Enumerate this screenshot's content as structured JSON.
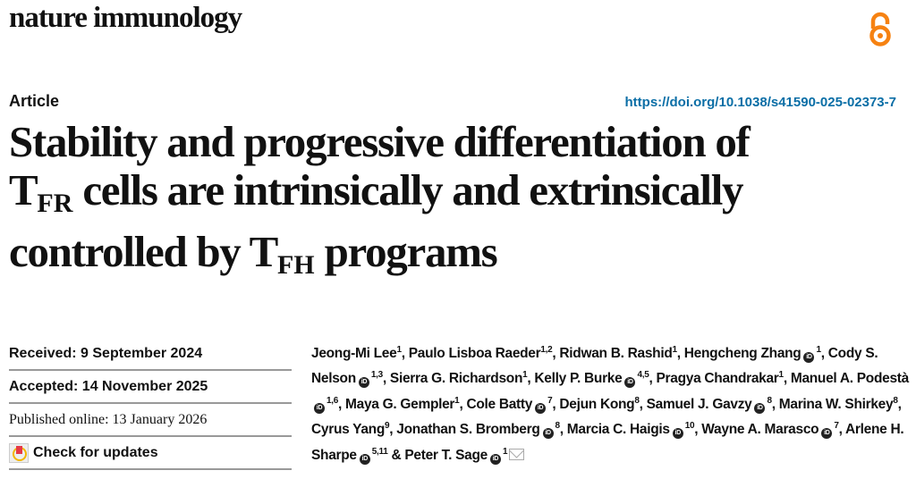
{
  "journal": "nature immunology",
  "article_type": "Article",
  "doi": "https://doi.org/10.1038/s41590-025-02373-7",
  "title": {
    "line1": "Stability and progressive differentiation of",
    "t1": "T",
    "s1": "FR",
    "line2": " cells are intrinsically and extrinsically",
    "line3a": "controlled by T",
    "s2": "FH",
    "line3b": " programs"
  },
  "dates": {
    "received": "Received: 9 September 2024",
    "accepted": "Accepted: 14 November 2025",
    "published": "Published online: 13 January 2026",
    "check_updates": "Check for updates"
  },
  "authors": [
    {
      "name": "Jeong-Mi Lee",
      "aff": "1",
      "orcid": false,
      "sep": ", "
    },
    {
      "name": "Paulo Lisboa Raeder",
      "aff": "1,2",
      "orcid": false,
      "sep": ", "
    },
    {
      "name": "Ridwan B. Rashid",
      "aff": "1",
      "orcid": false,
      "sep": ", "
    },
    {
      "name": "Hengcheng Zhang",
      "aff": "1",
      "orcid": true,
      "sep": ", "
    },
    {
      "name": "Cody S. Nelson",
      "aff": "1,3",
      "orcid": true,
      "sep": ", "
    },
    {
      "name": "Sierra G. Richardson",
      "aff": "1",
      "orcid": false,
      "sep": ", "
    },
    {
      "name": "Kelly P. Burke",
      "aff": "4,5",
      "orcid": true,
      "sep": ", "
    },
    {
      "name": "Pragya Chandrakar",
      "aff": "1",
      "orcid": false,
      "sep": ", "
    },
    {
      "name": "Manuel A. Podestà",
      "aff": "1,6",
      "orcid": true,
      "sep": ", "
    },
    {
      "name": "Maya G. Gempler",
      "aff": "1",
      "orcid": false,
      "sep": ", "
    },
    {
      "name": "Cole Batty",
      "aff": "7",
      "orcid": true,
      "sep": ", "
    },
    {
      "name": "Dejun Kong",
      "aff": "8",
      "orcid": false,
      "sep": ", "
    },
    {
      "name": "Samuel J. Gavzy",
      "aff": "8",
      "orcid": true,
      "sep": ", "
    },
    {
      "name": "Marina W. Shirkey",
      "aff": "8",
      "orcid": false,
      "sep": ", "
    },
    {
      "name": "Cyrus Yang",
      "aff": "9",
      "orcid": false,
      "sep": ", "
    },
    {
      "name": "Jonathan S. Bromberg",
      "aff": "8",
      "orcid": true,
      "sep": ", "
    },
    {
      "name": "Marcia C. Haigis",
      "aff": "10",
      "orcid": true,
      "sep": ", "
    },
    {
      "name": "Wayne A. Marasco",
      "aff": "7",
      "orcid": true,
      "sep": ", "
    },
    {
      "name": "Arlene H. Sharpe",
      "aff": "5,11",
      "orcid": true,
      "sep": " & "
    },
    {
      "name": "Peter T. Sage",
      "aff": "1",
      "orcid": true,
      "sep": ""
    }
  ],
  "orcid_label": "iD",
  "icons": {
    "open_access": "open-access-icon",
    "orcid": "orcid-icon",
    "email": "email-icon",
    "check_updates": "check-for-updates-icon"
  },
  "colors": {
    "doi": "#0a6ea6",
    "open_access": "#f68212"
  }
}
